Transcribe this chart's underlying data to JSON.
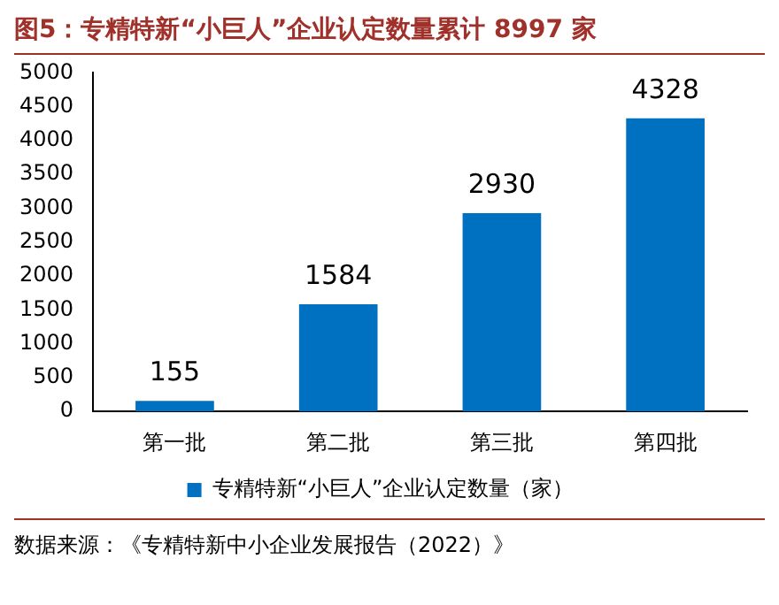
{
  "chart_data": {
    "type": "bar",
    "title": "图5：专精特新“小巨人”企业认定数量累计 8997 家",
    "categories": [
      "第一批",
      "第二批",
      "第三批",
      "第四批"
    ],
    "series": [
      {
        "name": "专精特新“小巨人”企业认定数量（家）",
        "color": "#0070c0",
        "values": [
          155,
          1584,
          2930,
          4328
        ]
      }
    ],
    "ylim": [
      0,
      5000
    ],
    "yticks": [
      0,
      500,
      1000,
      1500,
      2000,
      2500,
      3000,
      3500,
      4000,
      4500,
      5000
    ],
    "grid": false,
    "legend": "bottom",
    "data_labels": true,
    "annotations": [
      "数据来源：《专精特新中小企业发展报告（2022）》"
    ]
  }
}
